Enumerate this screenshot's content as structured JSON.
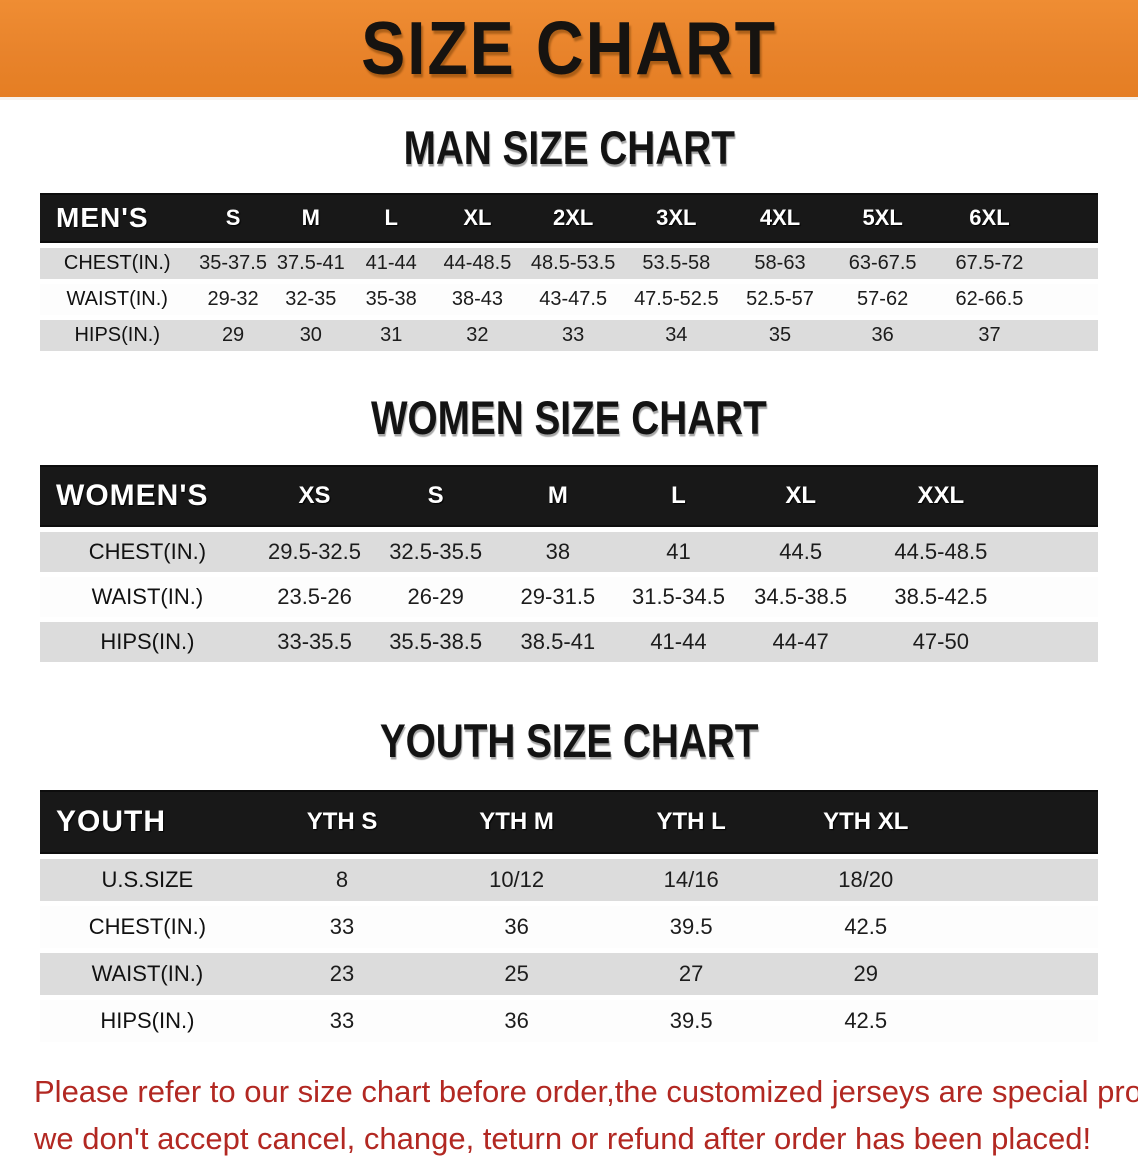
{
  "banner": {
    "title": "SIZE CHART",
    "bg_color": "#E8832B",
    "text_color": "#161310"
  },
  "sections": [
    {
      "id": "men",
      "title": "MAN SIZE CHART",
      "header_label": "MEN'S",
      "columns": [
        "S",
        "M",
        "L",
        "XL",
        "2XL",
        "3XL",
        "4XL",
        "5XL",
        "6XL"
      ],
      "rows": [
        {
          "label": "CHEST(IN.)",
          "values": [
            "35-37.5",
            "37.5-41",
            "41-44",
            "44-48.5",
            "48.5-53.5",
            "53.5-58",
            "58-63",
            "63-67.5",
            "67.5-72"
          ]
        },
        {
          "label": "WAIST(IN.)",
          "values": [
            "29-32",
            "32-35",
            "35-38",
            "38-43",
            "43-47.5",
            "47.5-52.5",
            "52.5-57",
            "57-62",
            "62-66.5"
          ]
        },
        {
          "label": "HIPS(IN.)",
          "values": [
            "29",
            "30",
            "31",
            "32",
            "33",
            "34",
            "35",
            "36",
            "37"
          ]
        }
      ]
    },
    {
      "id": "women",
      "title": "WOMEN SIZE CHART",
      "header_label": "WOMEN'S",
      "columns": [
        "XS",
        "S",
        "M",
        "L",
        "XL",
        "XXL"
      ],
      "rows": [
        {
          "label": "CHEST(IN.)",
          "values": [
            "29.5-32.5",
            "32.5-35.5",
            "38",
            "41",
            "44.5",
            "44.5-48.5"
          ]
        },
        {
          "label": "WAIST(IN.)",
          "values": [
            "23.5-26",
            "26-29",
            "29-31.5",
            "31.5-34.5",
            "34.5-38.5",
            "38.5-42.5"
          ]
        },
        {
          "label": "HIPS(IN.)",
          "values": [
            "33-35.5",
            "35.5-38.5",
            "38.5-41",
            "41-44",
            "44-47",
            "47-50"
          ]
        }
      ]
    },
    {
      "id": "youth",
      "title": "YOUTH SIZE CHART",
      "header_label": "YOUTH",
      "columns": [
        "YTH S",
        "YTH M",
        "YTH L",
        "YTH XL"
      ],
      "rows": [
        {
          "label": "U.S.SIZE",
          "values": [
            "8",
            "10/12",
            "14/16",
            "18/20"
          ]
        },
        {
          "label": "CHEST(IN.)",
          "values": [
            "33",
            "36",
            "39.5",
            "42.5"
          ]
        },
        {
          "label": "WAIST(IN.)",
          "values": [
            "23",
            "25",
            "27",
            "29"
          ]
        },
        {
          "label": "HIPS(IN.)",
          "values": [
            "33",
            "36",
            "39.5",
            "42.5"
          ]
        }
      ]
    }
  ],
  "disclaimer": {
    "line1": "Please refer to our size chart before order,the customized jerseys are special products,",
    "line2": "we don't accept cancel, change, teturn or refund after order has been placed!",
    "color": "#B22822"
  }
}
